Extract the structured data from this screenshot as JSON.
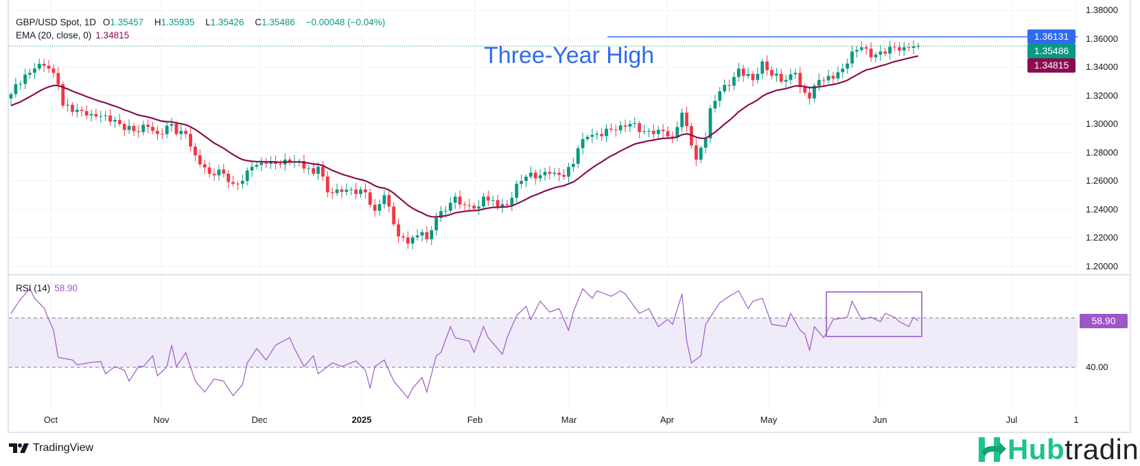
{
  "legend": {
    "symbol": "GBP/USD Spot, 1D",
    "open_label": "O",
    "open": "1.35457",
    "high_label": "H",
    "high": "1.35935",
    "low_label": "L",
    "low": "1.35426",
    "close_label": "C",
    "close": "1.35486",
    "change": "−0.00048 (−0.04%)",
    "ema_label": "EMA (20, close, 0)",
    "ema_value": "1.34815",
    "rsi_label": "RSI (14)",
    "rsi_value": "58.90"
  },
  "annotation": {
    "text": "Three-Year High",
    "level": 1.36131,
    "level_label": "1.36131"
  },
  "price_tags": {
    "last": "1.35486",
    "ema": "1.34815"
  },
  "colors": {
    "up": "#089981",
    "down": "#f23645",
    "ema": "#880e4f",
    "rsi": "#9c57c8",
    "annotation": "#2f6bf0"
  },
  "chart_data": [
    {
      "type": "candlestick",
      "title": "GBP/USD Spot, 1D",
      "ylim": [
        1.19,
        1.385
      ],
      "y_ticks": [
        "1.38000",
        "1.36000",
        "1.34000",
        "1.32000",
        "1.30000",
        "1.28000",
        "1.26000",
        "1.24000",
        "1.22000",
        "1.20000"
      ],
      "bars": 193,
      "close_keypoints": [
        [
          0,
          1.321
        ],
        [
          1,
          1.328
        ],
        [
          4,
          1.336
        ],
        [
          5,
          1.339
        ],
        [
          7,
          1.341
        ],
        [
          8,
          1.339
        ],
        [
          10,
          1.328
        ],
        [
          11,
          1.313
        ],
        [
          14,
          1.31
        ],
        [
          17,
          1.307
        ],
        [
          20,
          1.306
        ],
        [
          23,
          1.3
        ],
        [
          26,
          1.295
        ],
        [
          29,
          1.298
        ],
        [
          31,
          1.293
        ],
        [
          34,
          1.3
        ],
        [
          35,
          1.293
        ],
        [
          37,
          1.293
        ],
        [
          39,
          1.278
        ],
        [
          42,
          1.265
        ],
        [
          44,
          1.268
        ],
        [
          47,
          1.258
        ],
        [
          49,
          1.26
        ],
        [
          51,
          1.27
        ],
        [
          54,
          1.272
        ],
        [
          56,
          1.272
        ],
        [
          58,
          1.275
        ],
        [
          61,
          1.274
        ],
        [
          64,
          1.265
        ],
        [
          65,
          1.27
        ],
        [
          67,
          1.252
        ],
        [
          69,
          1.254
        ],
        [
          72,
          1.254
        ],
        [
          75,
          1.252
        ],
        [
          77,
          1.239
        ],
        [
          79,
          1.25
        ],
        [
          80,
          1.242
        ],
        [
          82,
          1.221
        ],
        [
          84,
          1.216
        ],
        [
          87,
          1.224
        ],
        [
          88,
          1.219
        ],
        [
          90,
          1.234
        ],
        [
          92,
          1.239
        ],
        [
          94,
          1.249
        ],
        [
          96,
          1.243
        ],
        [
          99,
          1.242
        ],
        [
          100,
          1.249
        ],
        [
          103,
          1.242
        ],
        [
          105,
          1.243
        ],
        [
          107,
          1.258
        ],
        [
          109,
          1.263
        ],
        [
          112,
          1.264
        ],
        [
          114,
          1.265
        ],
        [
          117,
          1.263
        ],
        [
          119,
          1.272
        ],
        [
          120,
          1.283
        ],
        [
          122,
          1.291
        ],
        [
          124,
          1.293
        ],
        [
          127,
          1.296
        ],
        [
          129,
          1.299
        ],
        [
          131,
          1.3
        ],
        [
          134,
          1.295
        ],
        [
          136,
          1.293
        ],
        [
          138,
          1.295
        ],
        [
          140,
          1.291
        ],
        [
          142,
          1.308
        ],
        [
          144,
          1.285
        ],
        [
          145,
          1.275
        ],
        [
          147,
          1.29
        ],
        [
          148,
          1.311
        ],
        [
          150,
          1.323
        ],
        [
          152,
          1.327
        ],
        [
          154,
          1.339
        ],
        [
          157,
          1.331
        ],
        [
          159,
          1.344
        ],
        [
          161,
          1.334
        ],
        [
          164,
          1.331
        ],
        [
          166,
          1.336
        ],
        [
          167,
          1.326
        ],
        [
          169,
          1.318
        ],
        [
          171,
          1.331
        ],
        [
          174,
          1.332
        ],
        [
          176,
          1.339
        ],
        [
          178,
          1.351
        ],
        [
          180,
          1.354
        ],
        [
          182,
          1.347
        ],
        [
          184,
          1.351
        ],
        [
          187,
          1.354
        ],
        [
          189,
          1.354
        ],
        [
          191,
          1.3546
        ],
        [
          192,
          1.35486
        ]
      ],
      "ema_period": 20
    },
    {
      "type": "line",
      "title": "RSI (14)",
      "ylim": [
        13.6,
        77.5
      ],
      "bands": [
        40,
        60
      ],
      "y_ticks": [
        "40.00"
      ],
      "rsi_keypoints": [
        [
          0,
          61.8
        ],
        [
          2,
          67.6
        ],
        [
          4,
          71.8
        ],
        [
          5,
          68
        ],
        [
          7,
          64
        ],
        [
          8,
          59.4
        ],
        [
          9,
          55
        ],
        [
          10,
          44
        ],
        [
          13,
          43
        ],
        [
          14,
          41
        ],
        [
          17,
          42
        ],
        [
          19,
          42.4
        ],
        [
          20,
          37.4
        ],
        [
          22,
          40.3
        ],
        [
          24,
          38.8
        ],
        [
          25,
          34.4
        ],
        [
          27,
          40.3
        ],
        [
          28,
          40.3
        ],
        [
          30,
          44.7
        ],
        [
          31,
          36.5
        ],
        [
          33,
          40.3
        ],
        [
          34,
          49
        ],
        [
          35,
          40.3
        ],
        [
          37,
          46
        ],
        [
          39,
          34.4
        ],
        [
          41,
          30
        ],
        [
          43,
          35.3
        ],
        [
          45,
          34.4
        ],
        [
          47,
          28.5
        ],
        [
          49,
          33
        ],
        [
          50,
          41.8
        ],
        [
          52,
          47.6
        ],
        [
          54,
          43
        ],
        [
          56,
          49
        ],
        [
          59,
          52
        ],
        [
          60,
          47.6
        ],
        [
          62,
          40.3
        ],
        [
          64,
          44.7
        ],
        [
          65,
          37.4
        ],
        [
          67,
          40.3
        ],
        [
          68,
          41.8
        ],
        [
          70,
          40.3
        ],
        [
          73,
          42.6
        ],
        [
          75,
          38.8
        ],
        [
          76,
          31.5
        ],
        [
          77,
          40.3
        ],
        [
          79,
          43
        ],
        [
          81,
          34.4
        ],
        [
          84,
          27.6
        ],
        [
          85,
          31.5
        ],
        [
          87,
          35.9
        ],
        [
          88,
          30
        ],
        [
          90,
          44.7
        ],
        [
          91,
          46
        ],
        [
          93,
          56.5
        ],
        [
          94,
          52
        ],
        [
          97,
          50.6
        ],
        [
          98,
          46
        ],
        [
          100,
          56.5
        ],
        [
          101,
          52
        ],
        [
          104,
          45.3
        ],
        [
          105,
          52
        ],
        [
          107,
          61
        ],
        [
          109,
          64.7
        ],
        [
          110,
          59.4
        ],
        [
          112,
          66.8
        ],
        [
          114,
          62.4
        ],
        [
          116,
          63.8
        ],
        [
          118,
          55
        ],
        [
          119,
          62.4
        ],
        [
          121,
          71.8
        ],
        [
          123,
          68
        ],
        [
          124,
          71
        ],
        [
          127,
          68.8
        ],
        [
          129,
          71
        ],
        [
          130,
          69.7
        ],
        [
          133,
          61.8
        ],
        [
          135,
          63.8
        ],
        [
          137,
          56.5
        ],
        [
          139,
          59.4
        ],
        [
          140,
          57.4
        ],
        [
          142,
          69.7
        ],
        [
          143,
          50.6
        ],
        [
          144,
          41.8
        ],
        [
          146,
          44.7
        ],
        [
          147,
          57.4
        ],
        [
          150,
          66.2
        ],
        [
          152,
          68.8
        ],
        [
          154,
          71
        ],
        [
          156,
          63.8
        ],
        [
          157,
          66.8
        ],
        [
          159,
          68
        ],
        [
          161,
          57.4
        ],
        [
          164,
          56.5
        ],
        [
          165,
          61.8
        ],
        [
          167,
          55
        ],
        [
          168,
          53.5
        ],
        [
          169,
          46.8
        ],
        [
          170,
          56.5
        ],
        [
          172,
          52
        ],
        [
          174,
          59.4
        ],
        [
          177,
          60.3
        ],
        [
          178,
          66.8
        ],
        [
          180,
          59.4
        ],
        [
          182,
          60.3
        ],
        [
          184,
          58.5
        ],
        [
          185,
          61.8
        ],
        [
          187,
          60.3
        ],
        [
          188,
          58.5
        ],
        [
          190,
          56.5
        ],
        [
          191,
          60.3
        ],
        [
          192,
          58.9
        ]
      ]
    }
  ],
  "time_axis": [
    {
      "label": "Oct",
      "bold": false
    },
    {
      "label": "Nov",
      "bold": false
    },
    {
      "label": "Dec",
      "bold": false
    },
    {
      "label": "2025",
      "bold": true
    },
    {
      "label": "Feb",
      "bold": false
    },
    {
      "label": "Mar",
      "bold": false
    },
    {
      "label": "Apr",
      "bold": false
    },
    {
      "label": "May",
      "bold": false
    },
    {
      "label": "Jun",
      "bold": false
    },
    {
      "label": "Jul",
      "bold": false
    },
    {
      "label": "1",
      "bold": false
    }
  ],
  "branding": {
    "tradingview": "TradingView",
    "hub_a": "Hub",
    "hub_b": "trading"
  }
}
